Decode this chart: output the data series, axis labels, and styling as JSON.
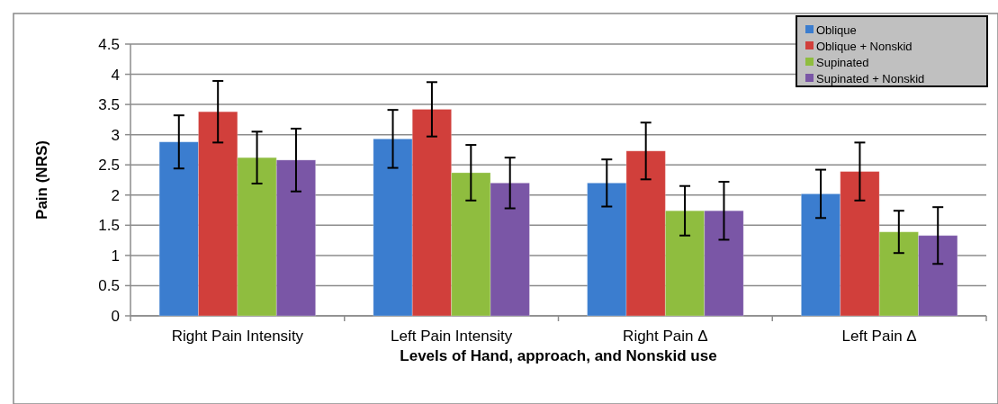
{
  "chart_data": {
    "type": "bar",
    "xlabel": "Levels of Hand, approach, and Nonskid use",
    "ylabel": "Pain (NRS)",
    "categories": [
      "Right Pain Intensity",
      "Left Pain Intensity",
      "Right Pain Δ",
      "Left Pain Δ"
    ],
    "series": [
      {
        "name": "Oblique",
        "color": "#3b7dcf",
        "values": [
          2.88,
          2.93,
          2.2,
          2.02
        ],
        "errors": [
          0.44,
          0.48,
          0.39,
          0.4
        ]
      },
      {
        "name": "Oblique + Nonskid",
        "color": "#d13f3b",
        "values": [
          3.38,
          3.42,
          2.73,
          2.39
        ],
        "errors": [
          0.51,
          0.45,
          0.47,
          0.48
        ]
      },
      {
        "name": "Supinated",
        "color": "#8fbd3f",
        "values": [
          2.62,
          2.37,
          1.74,
          1.39
        ],
        "errors": [
          0.43,
          0.46,
          0.41,
          0.35
        ]
      },
      {
        "name": "Supinated + Nonskid",
        "color": "#7a56a6",
        "values": [
          2.58,
          2.2,
          1.74,
          1.33
        ],
        "errors": [
          0.52,
          0.42,
          0.48,
          0.47
        ]
      }
    ],
    "ylim": [
      0,
      4.5
    ],
    "yticks": [
      0,
      0.5,
      1,
      1.5,
      2,
      2.5,
      3,
      3.5,
      4,
      4.5
    ],
    "grid": "y",
    "legend": "top right"
  }
}
